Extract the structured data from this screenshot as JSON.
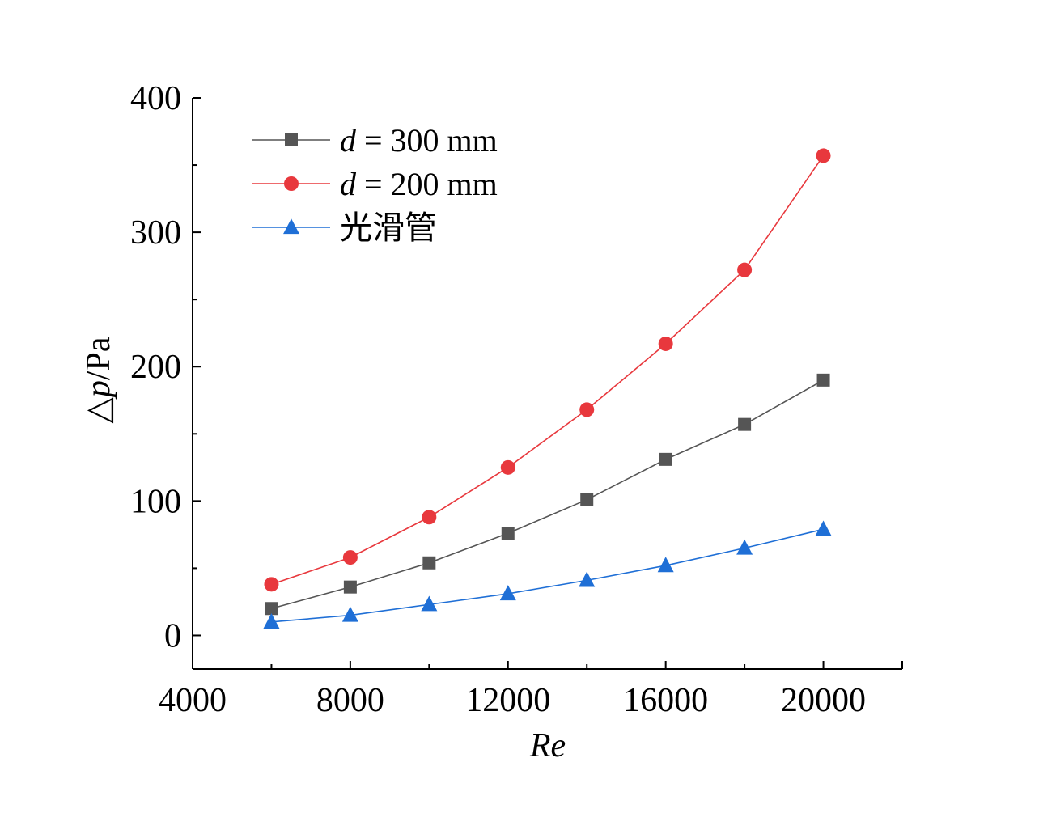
{
  "chart_data": {
    "type": "line",
    "xlabel": "Re",
    "ylabel": "△p/Pa",
    "xlim": [
      4000,
      22000
    ],
    "ylim": [
      -25,
      400
    ],
    "x_ticks": [
      "4000",
      "8000",
      "12000",
      "16000",
      "20000"
    ],
    "y_ticks": [
      "0",
      "100",
      "200",
      "300",
      "400"
    ],
    "legend_position": "top-left",
    "x": [
      6000,
      8000,
      10000,
      12000,
      14000,
      16000,
      18000,
      20000
    ],
    "series": [
      {
        "name": "d = 300 mm",
        "marker": "square",
        "color": "#555555",
        "values": [
          20,
          36,
          54,
          76,
          101,
          131,
          157,
          190
        ]
      },
      {
        "name": "d = 200 mm",
        "marker": "circle",
        "color": "#e8383d",
        "values": [
          38,
          58,
          88,
          125,
          168,
          217,
          272,
          357
        ]
      },
      {
        "name": "光滑管",
        "marker": "triangle",
        "color": "#1f6fd6",
        "values": [
          10,
          15,
          23,
          31,
          41,
          52,
          65,
          79
        ]
      }
    ]
  }
}
